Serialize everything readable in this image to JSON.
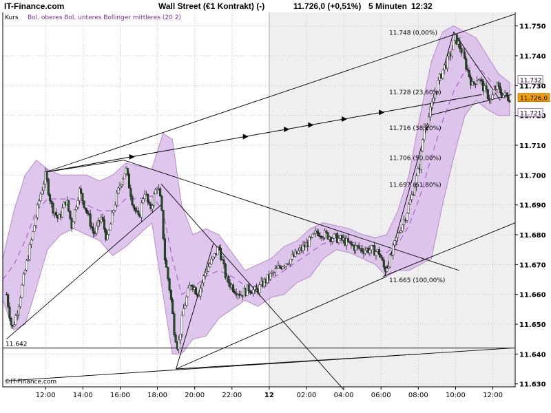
{
  "header": {
    "brand": "IT-Finance.com",
    "instrument": "Wall Street (€1 Kontrakt) (-)",
    "quote": "11.726,0 (+0,51%)",
    "interval": "5 Minuten",
    "time": "12:32"
  },
  "legend": {
    "kurs": "Kurs",
    "bollinger": "Bol. oberes Bol. unteres Bollinger mittleres (20 2)"
  },
  "copyright": "©IT-Finance.com",
  "colors": {
    "band_fill": "#dcc0ea",
    "band_edge": "#b07ec8",
    "mid_line": "#a050c0",
    "candle_up": "#ffffff",
    "candle_down": "#205020",
    "accent_price": "#f0a000"
  },
  "chart_data": {
    "type": "candlestick",
    "ylim": [
      11629,
      11755
    ],
    "yticks": [
      {
        "v": 11750,
        "label": "11.750"
      },
      {
        "v": 11740,
        "label": "11.740"
      },
      {
        "v": 11730,
        "label": "11.730"
      },
      {
        "v": 11720,
        "label": "11.720"
      },
      {
        "v": 11710,
        "label": "11.710"
      },
      {
        "v": 11700,
        "label": "11.700"
      },
      {
        "v": 11690,
        "label": "11.690"
      },
      {
        "v": 11680,
        "label": "11.680"
      },
      {
        "v": 11670,
        "label": "11.670"
      },
      {
        "v": 11660,
        "label": "11.660"
      },
      {
        "v": 11650,
        "label": "11.650"
      },
      {
        "v": 11640,
        "label": "11.640"
      },
      {
        "v": 11630,
        "label": "11.630"
      }
    ],
    "xticks": [
      {
        "label": "12:00",
        "h": 12
      },
      {
        "label": "14:00",
        "h": 14
      },
      {
        "label": "16:00",
        "h": 16
      },
      {
        "label": "18:00",
        "h": 18
      },
      {
        "label": "20:00",
        "h": 20
      },
      {
        "label": "22:00",
        "h": 22
      },
      {
        "label": "12",
        "h": 24,
        "bold": true
      },
      {
        "label": "02:00",
        "h": 26
      },
      {
        "label": "04:00",
        "h": 28
      },
      {
        "label": "06:00",
        "h": 30
      },
      {
        "label": "08:00",
        "h": 32
      },
      {
        "label": "10:00",
        "h": 34
      },
      {
        "label": "12:00",
        "h": 36
      }
    ],
    "x_range_hours": [
      9.7,
      37.2
    ],
    "shaded_from_hour": 24,
    "price_path": [
      [
        9.9,
        11660
      ],
      [
        10.2,
        11648
      ],
      [
        10.5,
        11655
      ],
      [
        10.9,
        11668
      ],
      [
        11.3,
        11680
      ],
      [
        11.7,
        11693
      ],
      [
        12.0,
        11700
      ],
      [
        12.3,
        11690
      ],
      [
        12.7,
        11685
      ],
      [
        13.1,
        11692
      ],
      [
        13.4,
        11683
      ],
      [
        13.8,
        11695
      ],
      [
        14.2,
        11688
      ],
      [
        14.6,
        11680
      ],
      [
        15.0,
        11686
      ],
      [
        15.3,
        11678
      ],
      [
        15.7,
        11690
      ],
      [
        16.0,
        11697
      ],
      [
        16.3,
        11702
      ],
      [
        16.7,
        11690
      ],
      [
        17.0,
        11685
      ],
      [
        17.3,
        11695
      ],
      [
        17.6,
        11688
      ],
      [
        18.0,
        11697
      ],
      [
        18.2,
        11690
      ],
      [
        18.4,
        11672
      ],
      [
        18.7,
        11660
      ],
      [
        18.9,
        11648
      ],
      [
        19.1,
        11642
      ],
      [
        19.4,
        11655
      ],
      [
        19.8,
        11664
      ],
      [
        20.2,
        11660
      ],
      [
        20.6,
        11668
      ],
      [
        21.0,
        11672
      ],
      [
        21.3,
        11676
      ],
      [
        21.7,
        11665
      ],
      [
        22.1,
        11662
      ],
      [
        22.5,
        11660
      ],
      [
        22.9,
        11662
      ],
      [
        23.3,
        11661
      ],
      [
        23.7,
        11664
      ],
      [
        24.2,
        11667
      ],
      [
        24.7,
        11670
      ],
      [
        25.2,
        11672
      ],
      [
        25.7,
        11675
      ],
      [
        26.2,
        11678
      ],
      [
        26.6,
        11681
      ],
      [
        27.0,
        11680
      ],
      [
        27.5,
        11679
      ],
      [
        28.0,
        11678
      ],
      [
        28.5,
        11676
      ],
      [
        29.0,
        11675
      ],
      [
        29.5,
        11675
      ],
      [
        29.9,
        11674
      ],
      [
        30.2,
        11668
      ],
      [
        30.5,
        11672
      ],
      [
        30.9,
        11680
      ],
      [
        31.3,
        11686
      ],
      [
        31.7,
        11694
      ],
      [
        32.1,
        11704
      ],
      [
        32.3,
        11716
      ],
      [
        32.6,
        11720
      ],
      [
        32.9,
        11728
      ],
      [
        33.3,
        11735
      ],
      [
        33.7,
        11740
      ],
      [
        34.0,
        11746
      ],
      [
        34.3,
        11742
      ],
      [
        34.6,
        11736
      ],
      [
        34.9,
        11730
      ],
      [
        35.2,
        11733
      ],
      [
        35.6,
        11728
      ],
      [
        35.9,
        11725
      ],
      [
        36.2,
        11730
      ],
      [
        36.5,
        11727
      ],
      [
        36.8,
        11726
      ]
    ],
    "bands": [
      [
        9.7,
        11665,
        11658,
        11672
      ],
      [
        10.3,
        11670,
        11648,
        11688
      ],
      [
        10.9,
        11678,
        11650,
        11700
      ],
      [
        11.5,
        11688,
        11662,
        11705
      ],
      [
        12.1,
        11692,
        11675,
        11702
      ],
      [
        12.8,
        11692,
        11680,
        11700
      ],
      [
        13.5,
        11692,
        11682,
        11700
      ],
      [
        14.2,
        11690,
        11680,
        11700
      ],
      [
        14.9,
        11688,
        11678,
        11698
      ],
      [
        15.6,
        11688,
        11673,
        11700
      ],
      [
        16.3,
        11692,
        11676,
        11704
      ],
      [
        17.0,
        11692,
        11680,
        11703
      ],
      [
        17.7,
        11693,
        11684,
        11702
      ],
      [
        18.3,
        11688,
        11660,
        11714
      ],
      [
        18.8,
        11672,
        11640,
        11712
      ],
      [
        19.3,
        11660,
        11640,
        11690
      ],
      [
        19.9,
        11662,
        11645,
        11680
      ],
      [
        20.6,
        11666,
        11646,
        11682
      ],
      [
        21.3,
        11668,
        11652,
        11680
      ],
      [
        22.0,
        11666,
        11655,
        11674
      ],
      [
        22.7,
        11663,
        11658,
        11668
      ],
      [
        23.4,
        11663,
        11656,
        11670
      ],
      [
        24.1,
        11665,
        11659,
        11672
      ],
      [
        24.8,
        11668,
        11660,
        11676
      ],
      [
        25.5,
        11671,
        11664,
        11678
      ],
      [
        26.2,
        11674,
        11666,
        11682
      ],
      [
        26.9,
        11677,
        11672,
        11684
      ],
      [
        27.6,
        11678,
        11675,
        11683
      ],
      [
        28.3,
        11678,
        11674,
        11682
      ],
      [
        29.0,
        11676,
        11672,
        11680
      ],
      [
        29.7,
        11675,
        11670,
        11679
      ],
      [
        30.3,
        11674,
        11666,
        11680
      ],
      [
        30.9,
        11677,
        11668,
        11688
      ],
      [
        31.5,
        11683,
        11668,
        11700
      ],
      [
        32.1,
        11693,
        11670,
        11720
      ],
      [
        32.7,
        11706,
        11672,
        11738
      ],
      [
        33.3,
        11718,
        11690,
        11748
      ],
      [
        33.9,
        11728,
        11706,
        11750
      ],
      [
        34.5,
        11735,
        11720,
        11748
      ],
      [
        35.1,
        11737,
        11725,
        11746
      ],
      [
        35.7,
        11733,
        11722,
        11740
      ],
      [
        36.3,
        11728,
        11720,
        11734
      ],
      [
        36.9,
        11726,
        11720,
        11731
      ]
    ],
    "fibonacci": [
      {
        "v": 11748,
        "label": "11.748 (0,00%)"
      },
      {
        "v": 11728,
        "label": "11.728 (23,60%)"
      },
      {
        "v": 11716,
        "label": "11.716 (38,20%)"
      },
      {
        "v": 11706,
        "label": "11.706 (50,00%)"
      },
      {
        "v": 11697,
        "label": "11.697 (61,80%)"
      },
      {
        "v": 11665,
        "label": "11.665 (100,00%)"
      }
    ],
    "low_label": {
      "v": 11642,
      "label": "11.642"
    },
    "right_labels": [
      {
        "v": 11732,
        "label": "11.732",
        "style": "band"
      },
      {
        "v": 11726,
        "label": "11.726,0",
        "style": "price"
      },
      {
        "v": 11721,
        "label": "11.721",
        "style": "band"
      }
    ]
  }
}
